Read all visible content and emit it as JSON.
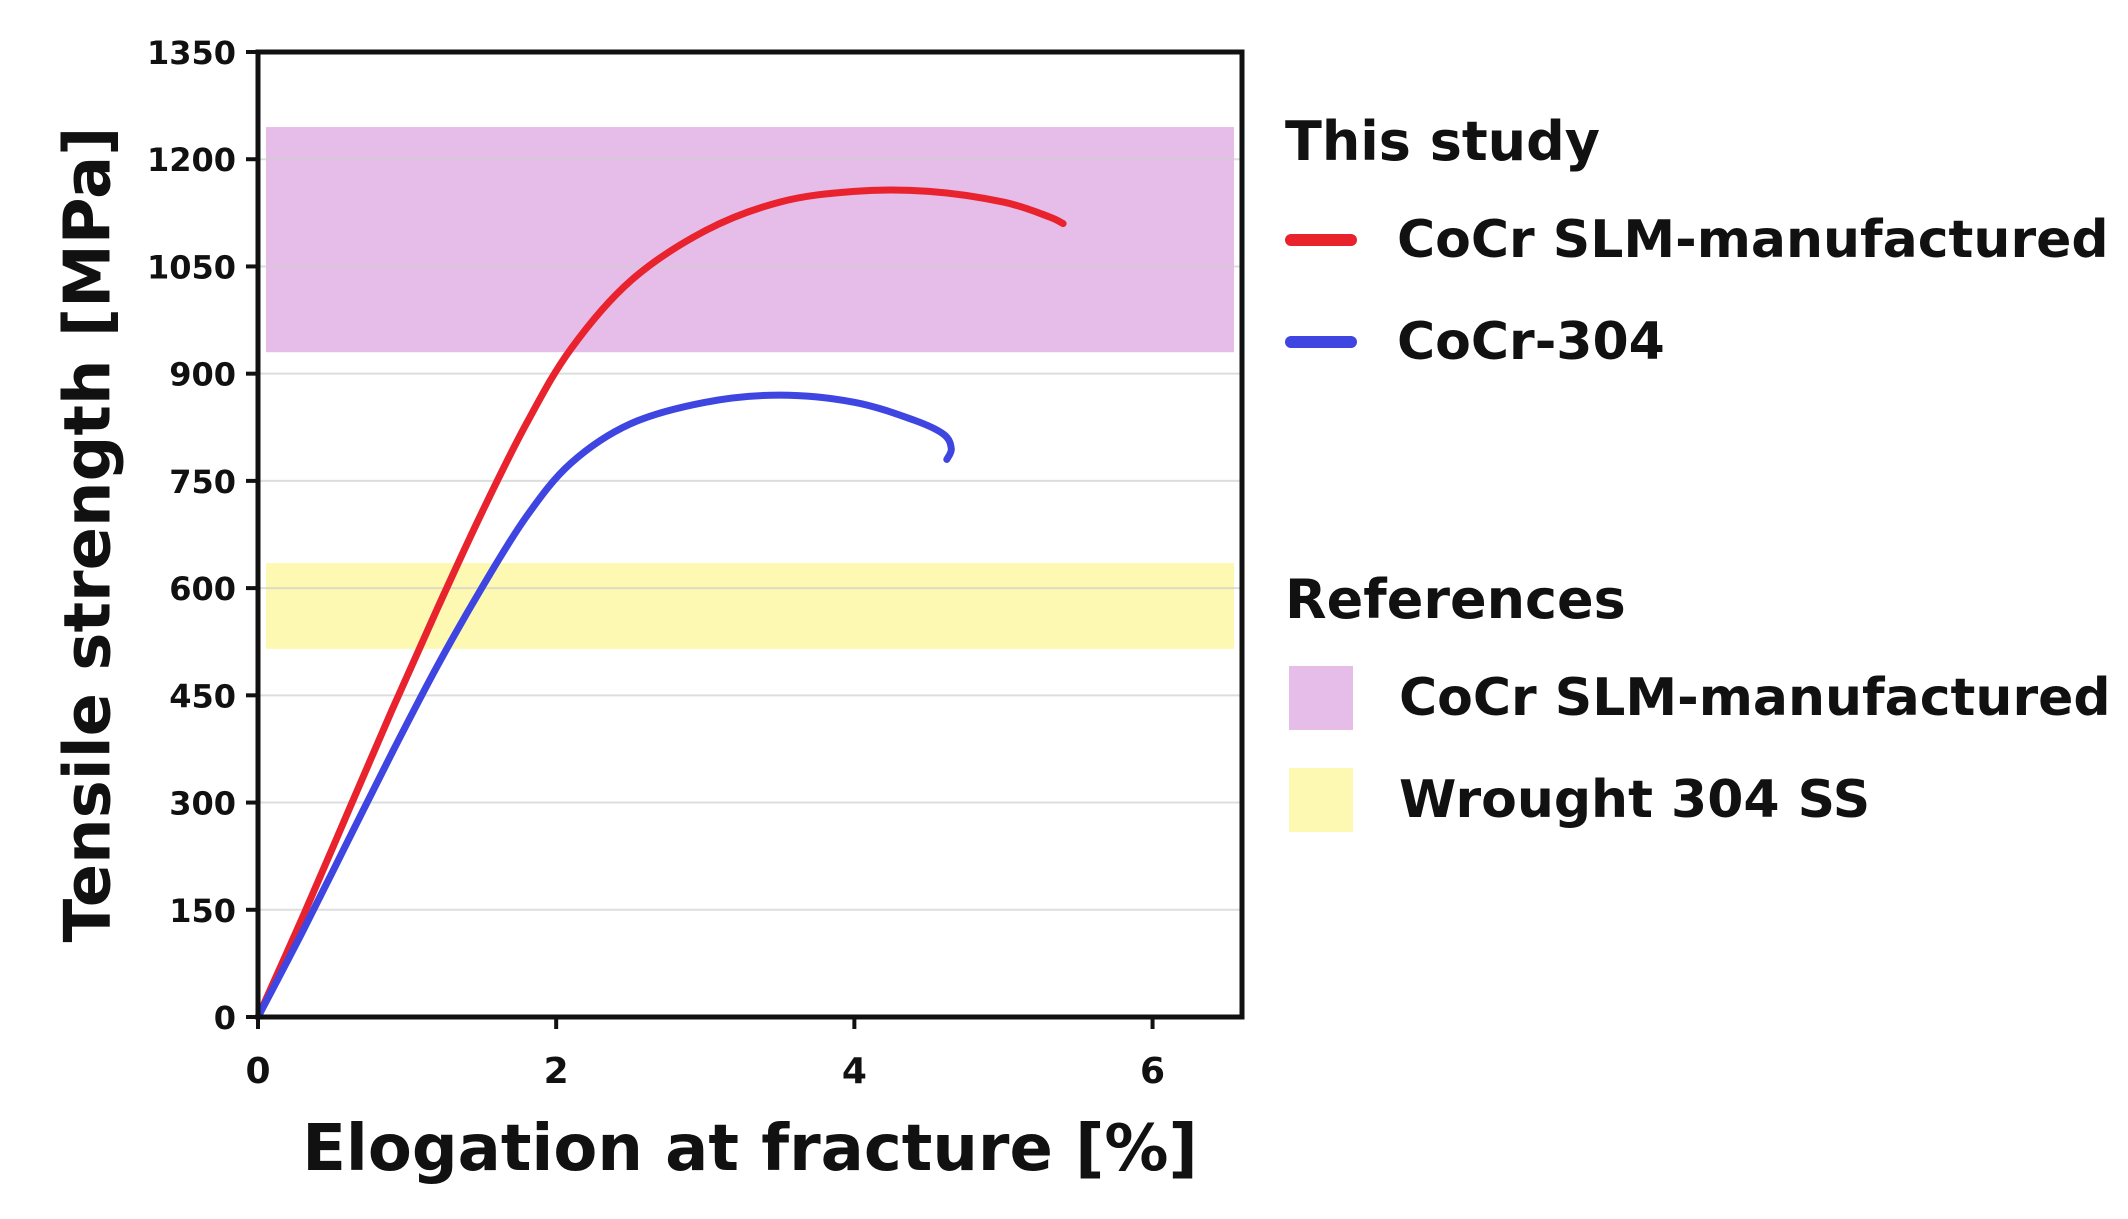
{
  "chart_data": {
    "type": "line",
    "xlabel": "Elogation at fracture [%]",
    "ylabel": "Tensile strength [MPa]",
    "xlim": [
      0,
      6.6
    ],
    "ylim": [
      0,
      1350
    ],
    "xticks": [
      0,
      2,
      4,
      6
    ],
    "yticks": [
      0,
      150,
      300,
      450,
      600,
      750,
      900,
      1050,
      1200,
      1350
    ],
    "grid": "horizontal",
    "series": [
      {
        "name": "CoCr SLM-manufactured",
        "group": "This study",
        "color": "#e8232d",
        "x": [
          0,
          0.3,
          0.6,
          0.9,
          1.2,
          1.5,
          1.8,
          2.1,
          2.5,
          3.0,
          3.5,
          4.0,
          4.5,
          5.0,
          5.3,
          5.4
        ],
        "y": [
          0,
          140,
          285,
          430,
          570,
          705,
          830,
          935,
          1030,
          1100,
          1140,
          1155,
          1155,
          1140,
          1120,
          1110
        ]
      },
      {
        "name": "CoCr-304",
        "group": "This study",
        "color": "#3f45e0",
        "x": [
          0,
          0.3,
          0.6,
          0.9,
          1.2,
          1.5,
          1.8,
          2.1,
          2.5,
          3.0,
          3.5,
          4.0,
          4.4,
          4.6,
          4.65,
          4.62
        ],
        "y": [
          0,
          120,
          245,
          370,
          490,
          600,
          700,
          775,
          830,
          860,
          870,
          860,
          835,
          815,
          795,
          780
        ]
      }
    ],
    "bands": [
      {
        "name": "CoCr SLM-manufactured",
        "group": "References",
        "color": "#e6bce9",
        "y0": 930,
        "y1": 1245
      },
      {
        "name": "Wrought 304 SS",
        "group": "References",
        "color": "#fdf9b2",
        "y0": 515,
        "y1": 635
      }
    ]
  },
  "legend": {
    "this_study_heading": "This study",
    "references_heading": "References",
    "items_study": [
      {
        "label": "CoCr SLM-manufactured",
        "color": "#e8232d"
      },
      {
        "label": "CoCr-304",
        "color": "#3f45e0"
      }
    ],
    "items_references": [
      {
        "label": "CoCr SLM-manufactured",
        "color": "#e6bce9"
      },
      {
        "label": "Wrought 304 SS",
        "color": "#fdf9b2"
      }
    ]
  }
}
